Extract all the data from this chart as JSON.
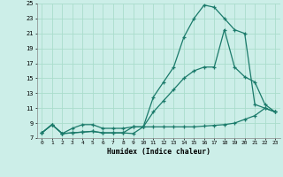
{
  "xlabel": "Humidex (Indice chaleur)",
  "bg_color": "#cceee8",
  "grid_color": "#aaddcc",
  "line_color": "#1a7a6a",
  "xlim": [
    -0.5,
    23.5
  ],
  "ylim": [
    7,
    25
  ],
  "xticks": [
    0,
    1,
    2,
    3,
    4,
    5,
    6,
    7,
    8,
    9,
    10,
    11,
    12,
    13,
    14,
    15,
    16,
    17,
    18,
    19,
    20,
    21,
    22,
    23
  ],
  "yticks": [
    7,
    9,
    11,
    13,
    15,
    17,
    19,
    21,
    23,
    25
  ],
  "curve1_x": [
    0,
    1,
    2,
    3,
    4,
    5,
    6,
    7,
    8,
    9,
    10,
    11,
    12,
    13,
    14,
    15,
    16,
    17,
    18,
    19,
    20,
    21,
    22,
    23
  ],
  "curve1_y": [
    7.7,
    8.8,
    7.6,
    7.7,
    7.8,
    7.9,
    7.7,
    7.7,
    7.7,
    7.6,
    8.5,
    8.5,
    8.5,
    8.5,
    8.5,
    8.5,
    8.6,
    8.7,
    8.8,
    9.0,
    9.5,
    10.0,
    11.0,
    10.5
  ],
  "curve2_x": [
    0,
    1,
    2,
    3,
    4,
    5,
    6,
    7,
    8,
    9,
    10,
    11,
    12,
    13,
    14,
    15,
    16,
    17,
    18,
    19,
    20,
    21,
    22,
    23
  ],
  "curve2_y": [
    7.7,
    8.8,
    7.6,
    8.3,
    8.8,
    8.8,
    8.3,
    8.3,
    8.3,
    8.5,
    8.5,
    10.5,
    12.0,
    13.5,
    15.0,
    16.0,
    16.5,
    16.5,
    21.5,
    16.5,
    15.2,
    14.5,
    11.5,
    10.5
  ],
  "curve3_x": [
    0,
    1,
    2,
    3,
    4,
    5,
    6,
    7,
    8,
    9,
    10,
    11,
    12,
    13,
    14,
    15,
    16,
    17,
    18,
    19,
    20,
    21,
    22,
    23
  ],
  "curve3_y": [
    7.7,
    8.8,
    7.6,
    7.7,
    7.8,
    7.9,
    7.7,
    7.7,
    7.7,
    8.5,
    8.5,
    12.5,
    14.5,
    16.5,
    20.5,
    23.0,
    24.8,
    24.5,
    23.0,
    21.5,
    21.0,
    11.5,
    11.0,
    10.5
  ]
}
